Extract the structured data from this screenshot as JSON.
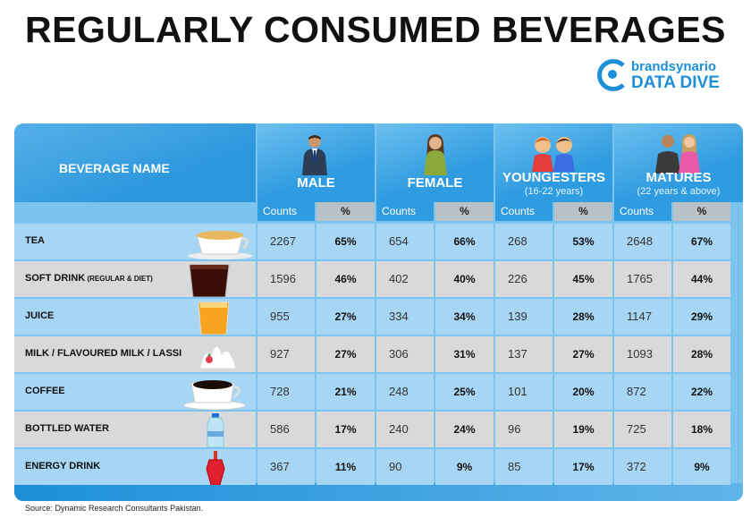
{
  "title": "REGULARLY CONSUMED BEVERAGES",
  "logo": {
    "brand": "brandsynario",
    "sub": "DATA DIVE"
  },
  "header": {
    "beverage_name": "BEVERAGE NAME",
    "groups": [
      {
        "label": "MALE",
        "sub": ""
      },
      {
        "label": "FEMALE",
        "sub": ""
      },
      {
        "label": "YOUNGESTERS",
        "sub": "(16-22 years)"
      },
      {
        "label": "MATURES",
        "sub": "(22 years & above)"
      }
    ],
    "counts_label": "Counts",
    "pct_label": "%"
  },
  "rows": [
    {
      "name": "TEA",
      "note": "",
      "icon": "tea-cup-icon",
      "values": [
        "2267",
        "65%",
        "654",
        "66%",
        "268",
        "53%",
        "2648",
        "67%"
      ]
    },
    {
      "name": "SOFT DRINK",
      "note": "(REGULAR & DIET)",
      "icon": "soft-drink-glass-icon",
      "values": [
        "1596",
        "46%",
        "402",
        "40%",
        "226",
        "45%",
        "1765",
        "44%"
      ]
    },
    {
      "name": "JUICE",
      "note": "",
      "icon": "juice-glass-icon",
      "values": [
        "955",
        "27%",
        "334",
        "34%",
        "139",
        "28%",
        "1147",
        "29%"
      ]
    },
    {
      "name": "MILK / FLAVOURED MILK / LASSI",
      "note": "",
      "icon": "milk-splash-icon",
      "values": [
        "927",
        "27%",
        "306",
        "31%",
        "137",
        "27%",
        "1093",
        "28%"
      ]
    },
    {
      "name": "COFFEE",
      "note": "",
      "icon": "coffee-cup-icon",
      "values": [
        "728",
        "21%",
        "248",
        "25%",
        "101",
        "20%",
        "872",
        "22%"
      ]
    },
    {
      "name": "BOTTLED WATER",
      "note": "",
      "icon": "water-bottle-icon",
      "values": [
        "586",
        "17%",
        "240",
        "24%",
        "96",
        "19%",
        "725",
        "18%"
      ]
    },
    {
      "name": "ENERGY DRINK",
      "note": "",
      "icon": "energy-drink-icon",
      "values": [
        "367",
        "11%",
        "90",
        "9%",
        "85",
        "17%",
        "372",
        "9%"
      ]
    }
  ],
  "source": "Source: Dynamic Research Consultants Pakistan.",
  "colors": {
    "header_blue": "#2f9be0",
    "row_blue": "#a6d6f3",
    "row_grey": "#d7d9db",
    "brand": "#1c8fd8"
  },
  "chart_data": {
    "type": "table",
    "title": "REGULARLY CONSUMED BEVERAGES",
    "columns": [
      "BEVERAGE NAME",
      "MALE Counts",
      "MALE %",
      "FEMALE Counts",
      "FEMALE %",
      "YOUNGESTERS Counts",
      "YOUNGESTERS %",
      "MATURES Counts",
      "MATURES %"
    ],
    "categories": [
      "TEA",
      "SOFT DRINK (REGULAR & DIET)",
      "JUICE",
      "MILK / FLAVOURED MILK / LASSI",
      "COFFEE",
      "BOTTLED WATER",
      "ENERGY DRINK"
    ],
    "series": [
      {
        "name": "MALE Counts",
        "values": [
          2267,
          1596,
          955,
          927,
          728,
          586,
          367
        ]
      },
      {
        "name": "MALE %",
        "values": [
          65,
          46,
          27,
          27,
          21,
          17,
          11
        ]
      },
      {
        "name": "FEMALE Counts",
        "values": [
          654,
          402,
          334,
          306,
          248,
          240,
          90
        ]
      },
      {
        "name": "FEMALE %",
        "values": [
          66,
          40,
          34,
          31,
          25,
          24,
          9
        ]
      },
      {
        "name": "YOUNGESTERS Counts",
        "values": [
          268,
          226,
          139,
          137,
          101,
          96,
          85
        ]
      },
      {
        "name": "YOUNGESTERS %",
        "values": [
          53,
          45,
          28,
          27,
          20,
          19,
          17
        ]
      },
      {
        "name": "MATURES Counts",
        "values": [
          2648,
          1765,
          1147,
          1093,
          872,
          725,
          372
        ]
      },
      {
        "name": "MATURES %",
        "values": [
          67,
          44,
          29,
          28,
          22,
          18,
          9
        ]
      }
    ]
  }
}
